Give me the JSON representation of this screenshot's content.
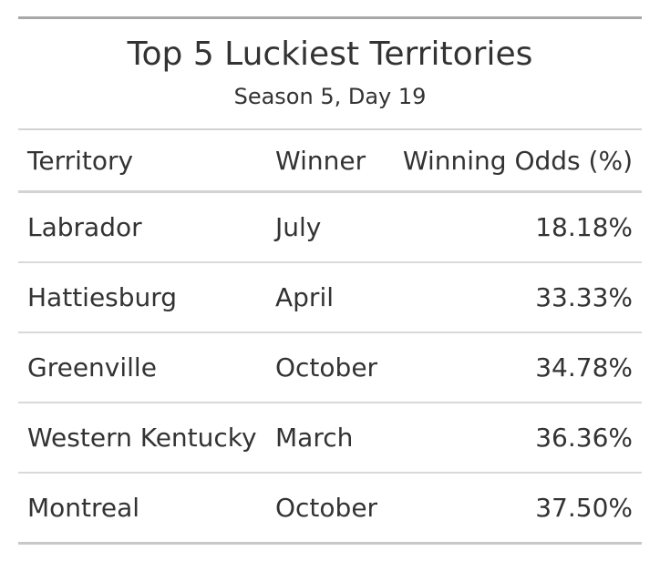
{
  "chart_data": {
    "type": "table",
    "title": "Top 5 Luckiest Territories",
    "subtitle": "Season 5, Day 19",
    "columns": [
      "Territory",
      "Winner",
      "Winning Odds (%)"
    ],
    "rows": [
      {
        "territory": "Labrador",
        "winner": "July",
        "odds": "18.18%"
      },
      {
        "territory": "Hattiesburg",
        "winner": "April",
        "odds": "33.33%"
      },
      {
        "territory": "Greenville",
        "winner": "October",
        "odds": "34.78%"
      },
      {
        "territory": "Western Kentucky",
        "winner": "March",
        "odds": "36.36%"
      },
      {
        "territory": "Montreal",
        "winner": "October",
        "odds": "37.50%"
      }
    ]
  }
}
